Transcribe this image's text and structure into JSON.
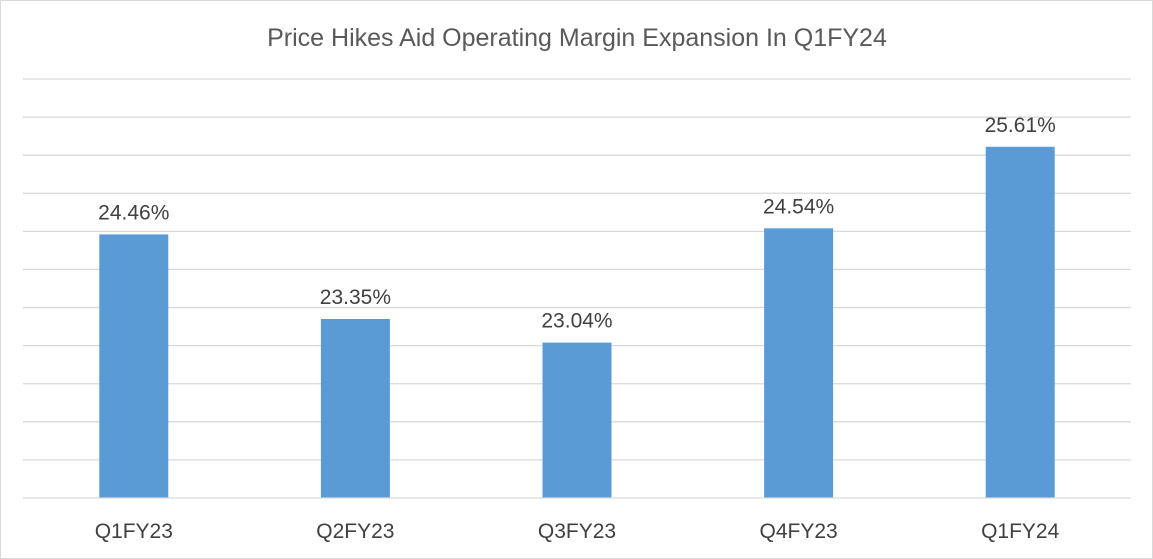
{
  "chart_data": {
    "type": "bar",
    "title": "Price Hikes Aid Operating Margin Expansion In Q1FY24",
    "xlabel": "",
    "ylabel": "",
    "categories": [
      "Q1FY23",
      "Q2FY23",
      "Q3FY23",
      "Q4FY23",
      "Q1FY24"
    ],
    "values": [
      24.46,
      23.35,
      23.04,
      24.54,
      25.61
    ],
    "data_labels": [
      "24.46%",
      "23.35%",
      "23.04%",
      "24.54%",
      "25.61%"
    ],
    "value_unit": "%",
    "ylim": [
      21,
      26.5
    ],
    "y_axis_labels_visible": false,
    "grid": true,
    "legend": "none",
    "bar_color": "#5b9bd5"
  }
}
